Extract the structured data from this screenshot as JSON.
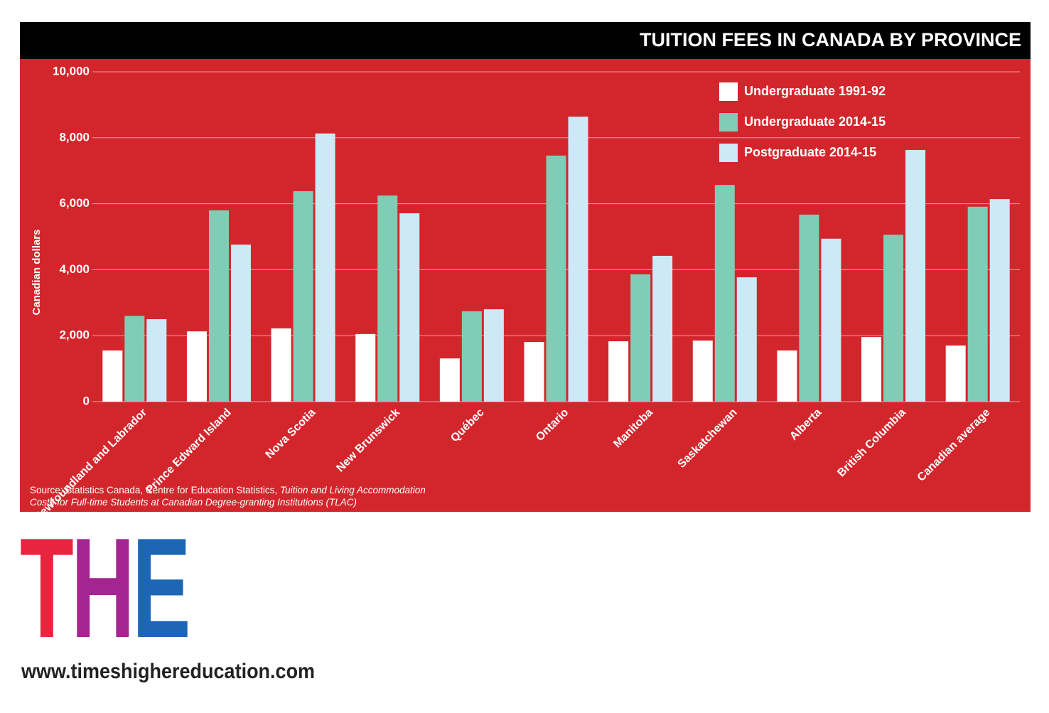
{
  "chart_data": {
    "type": "bar",
    "title": "TUITION FEES IN CANADA BY PROVINCE",
    "y_label": "Canadian dollars",
    "categories": [
      "Newfoundland and Labrador",
      "Prince Edward Island",
      "Nova Scotia",
      "New Brunswick",
      "Québec",
      "Ontario",
      "Manitoba",
      "Saskatchewan",
      "Alberta",
      "British Columbia",
      "Canadian average"
    ],
    "series": [
      {
        "name": "Undergraduate 1991-92",
        "color": "#ffffff",
        "values": [
          1550,
          2130,
          2220,
          2050,
          1310,
          1810,
          1830,
          1850,
          1550,
          1960,
          1700
        ]
      },
      {
        "name": "Undergraduate 2014-15",
        "color": "#7fcdb5",
        "values": [
          2600,
          5800,
          6380,
          6250,
          2740,
          7460,
          3860,
          6570,
          5670,
          5060,
          5910
        ]
      },
      {
        "name": "Postgraduate 2014-15",
        "color": "#cde9f7",
        "values": [
          2500,
          4760,
          8130,
          5710,
          2800,
          8640,
          4420,
          3770,
          4940,
          7630,
          6140
        ]
      }
    ],
    "ylim": [
      0,
      10000
    ],
    "yticks": [
      0,
      {
        "value": 2000,
        "label": "2,000"
      },
      {
        "value": 4000,
        "label": "4,000"
      },
      {
        "value": 6000,
        "label": "6,000"
      },
      {
        "value": 8000,
        "label": "8,000"
      },
      {
        "value": 10000,
        "label": "10,000"
      }
    ],
    "grid": true,
    "legend": "top-right",
    "source": "Source: Statistics Canada, Centre for Education Statistics,",
    "source_title": "Tuition and Living Accommodation Costs for Full-time Students at Canadian Degree-granting Institutions (TLAC)"
  },
  "branding": {
    "logo_letters": [
      "T",
      "H",
      "E"
    ],
    "url": "www.timeshighereducation.com"
  }
}
